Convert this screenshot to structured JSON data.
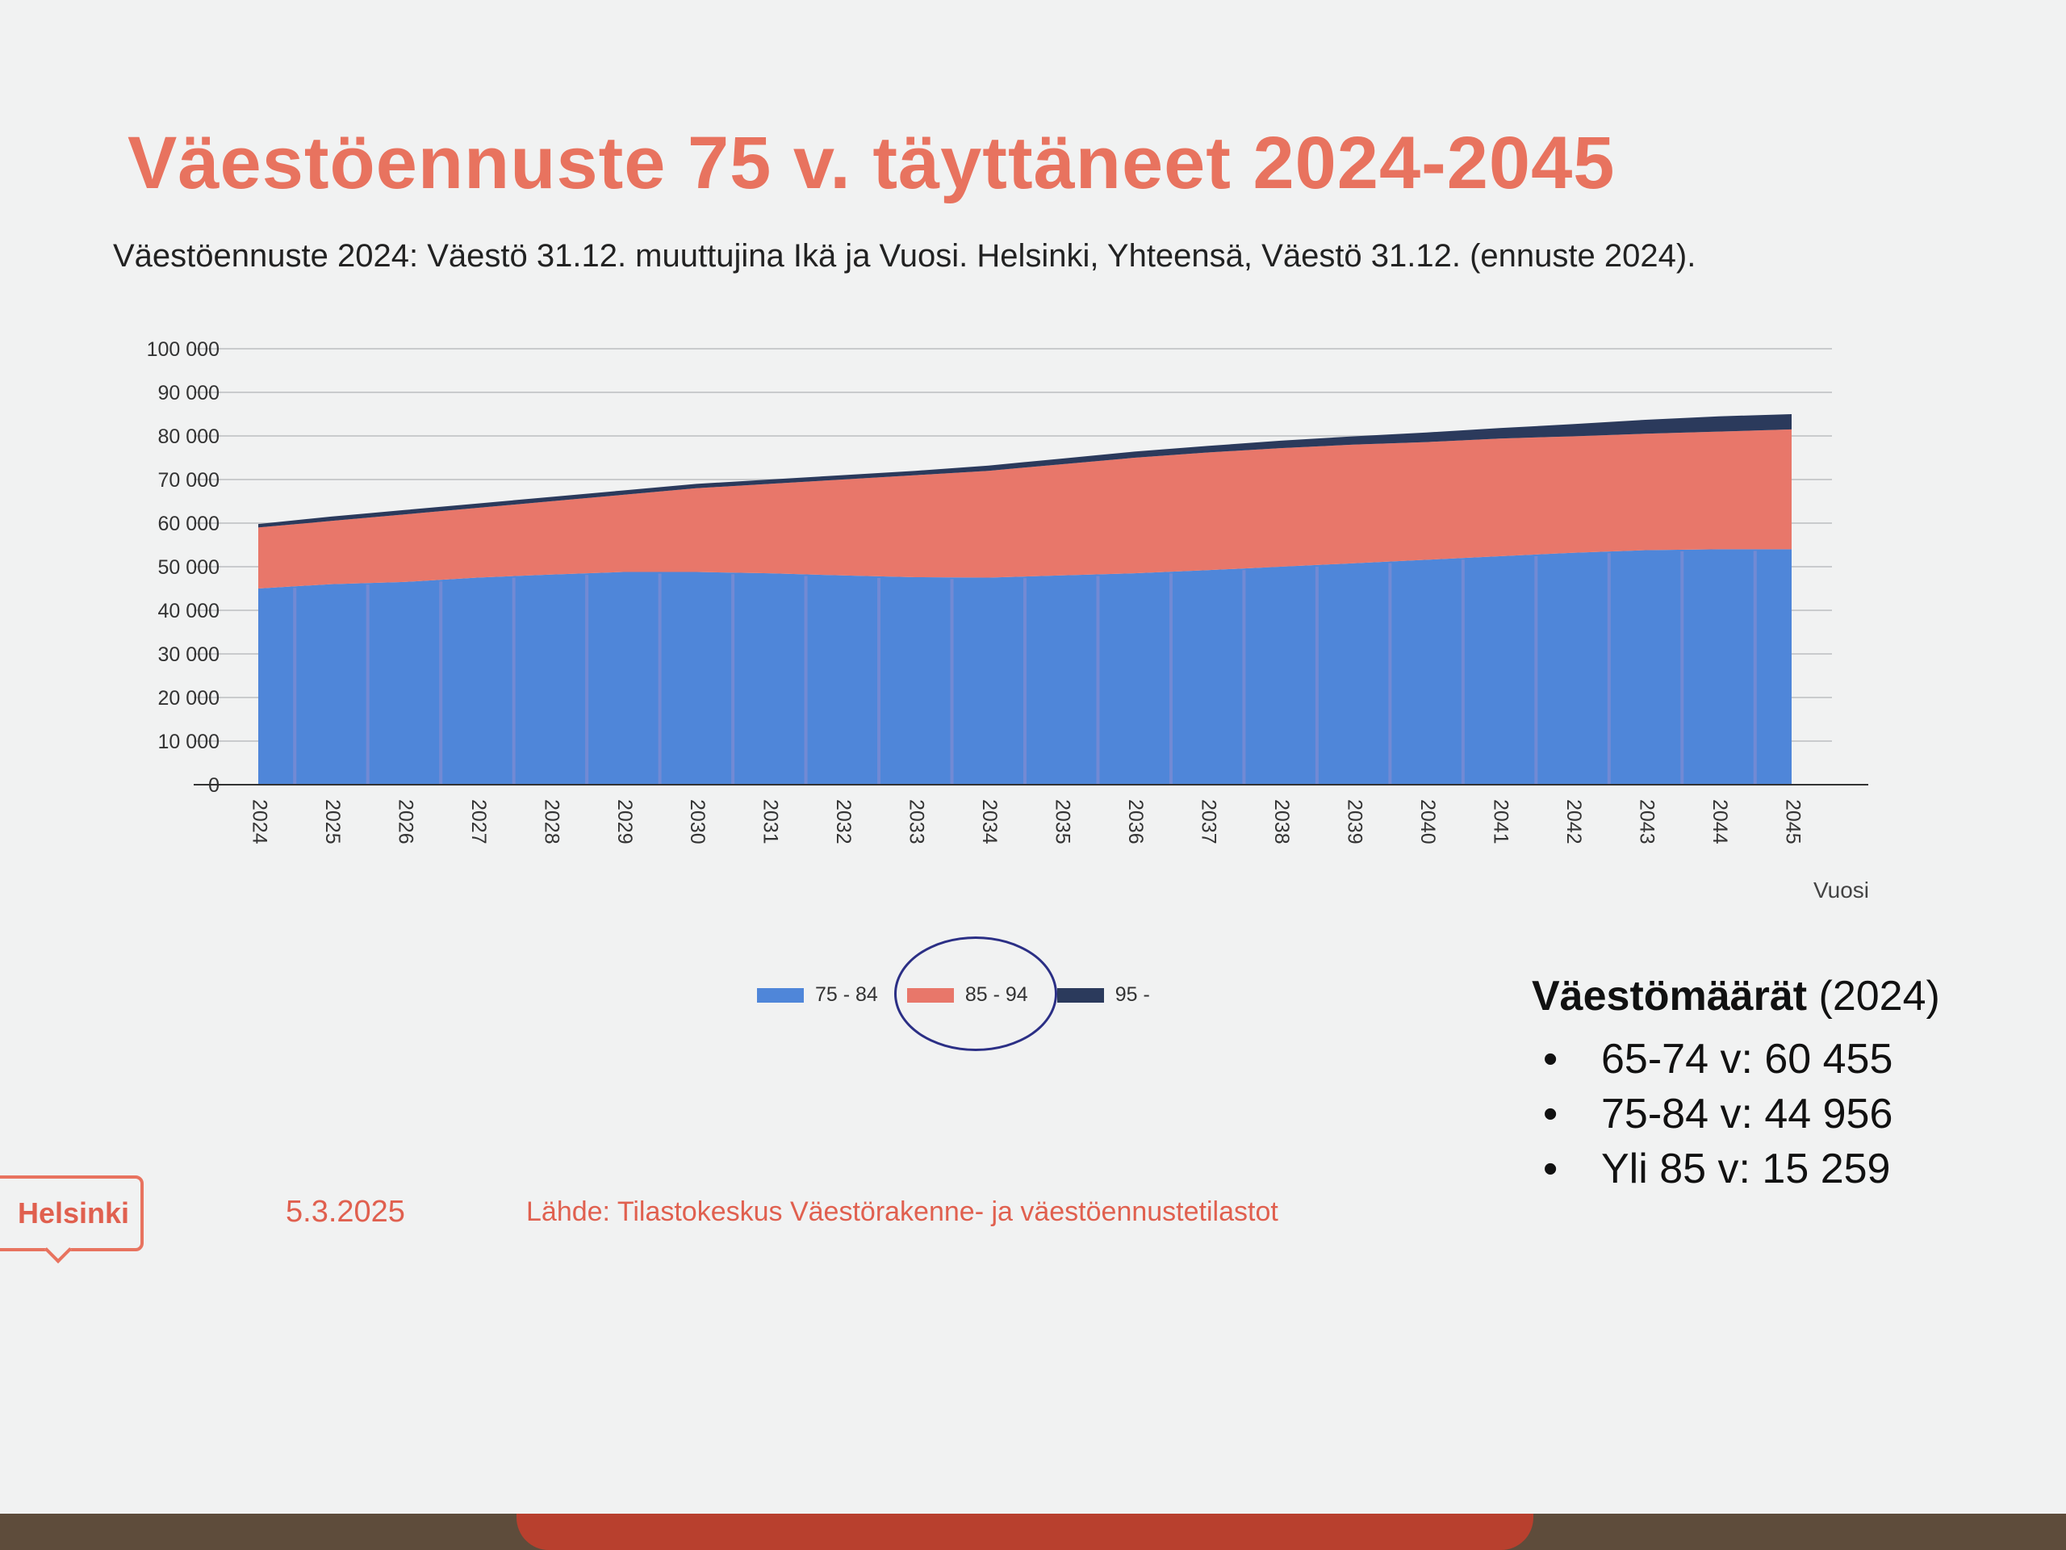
{
  "title": "Väestöennuste 75 v. täyttäneet 2024-2045",
  "subtitle": "Väestöennuste 2024: Väestö 31.12. muuttujina Ikä ja Vuosi. Helsinki, Yhteensä, Väestö 31.12. (ennuste 2024).",
  "chart_data": {
    "type": "area",
    "stacked": true,
    "xlabel": "Vuosi",
    "ylabel": "",
    "ylim": [
      0,
      100000
    ],
    "yticks": [
      "0",
      "10 000",
      "20 000",
      "30 000",
      "40 000",
      "50 000",
      "60 000",
      "70 000",
      "80 000",
      "90 000",
      "100 000"
    ],
    "x": [
      "2024",
      "2025",
      "2026",
      "2027",
      "2028",
      "2029",
      "2030",
      "2031",
      "2032",
      "2033",
      "2034",
      "2035",
      "2036",
      "2037",
      "2038",
      "2039",
      "2040",
      "2041",
      "2042",
      "2043",
      "2044",
      "2045"
    ],
    "series": [
      {
        "name": "75 - 84",
        "color": "#4f86d9",
        "values": [
          45000,
          46000,
          46500,
          47500,
          48200,
          48800,
          48800,
          48500,
          48000,
          47600,
          47500,
          48000,
          48500,
          49200,
          50000,
          50800,
          51600,
          52400,
          53200,
          53800,
          54000,
          54000
        ]
      },
      {
        "name": "85 - 94",
        "color": "#e8776a",
        "values": [
          14000,
          14500,
          15500,
          16000,
          16800,
          17700,
          19200,
          20500,
          22000,
          23400,
          24500,
          25500,
          26500,
          27000,
          27200,
          27200,
          27000,
          27000,
          26700,
          26700,
          27000,
          27500
        ]
      },
      {
        "name": "95 -",
        "color": "#2b3a5c",
        "values": [
          800,
          1000,
          1000,
          1000,
          1000,
          1000,
          1000,
          1000,
          1000,
          1000,
          1200,
          1300,
          1400,
          1500,
          1700,
          1900,
          2200,
          2400,
          2800,
          3200,
          3500,
          3500
        ]
      }
    ],
    "grid": true,
    "legend_position": "bottom"
  },
  "stats": {
    "heading_bold": "Väestömäärät",
    "heading_rest": " (2024)",
    "bullet": "•",
    "items": [
      "65-74 v: 60 455",
      "75-84 v: 44 956",
      "Yli 85 v: 15 259"
    ]
  },
  "footer": {
    "logo": "Helsinki",
    "date": "5.3.2025",
    "source": "Lähde: Tilastokeskus Väestörakenne- ja väestöennustetilastot"
  }
}
